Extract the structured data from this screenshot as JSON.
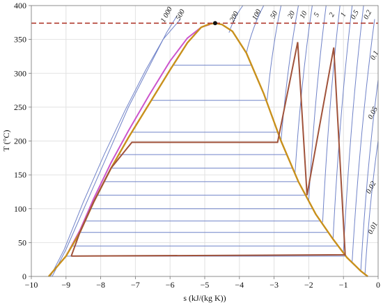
{
  "chart_data": {
    "type": "line",
    "xlabel": "s (kJ/(kg K))",
    "ylabel": "T (°C)",
    "xlim": [
      -10,
      0
    ],
    "ylim": [
      0,
      400
    ],
    "x_ticks": [
      "−10",
      "−9",
      "−8",
      "−7",
      "−6",
      "−5",
      "−4",
      "−3",
      "−2",
      "−1",
      "0"
    ],
    "y_ticks": [
      "0",
      "50",
      "100",
      "150",
      "200",
      "250",
      "300",
      "350",
      "400"
    ],
    "grid": true,
    "critical_temperature_line": {
      "y": 374,
      "color": "#b03a2e",
      "style": "dashed"
    },
    "critical_point": {
      "x": -4.7,
      "y": 374
    },
    "isobar_labels": [
      {
        "text": "1 000",
        "x": -6.05,
        "y": 385
      },
      {
        "text": "500",
        "x": -5.65,
        "y": 385
      },
      {
        "text": "200",
        "x": -4.1,
        "y": 382
      },
      {
        "text": "100",
        "x": -3.45,
        "y": 385
      },
      {
        "text": "50",
        "x": -2.95,
        "y": 385
      },
      {
        "text": "20",
        "x": -2.45,
        "y": 385
      },
      {
        "text": "10",
        "x": -2.1,
        "y": 385
      },
      {
        "text": "5",
        "x": -1.72,
        "y": 385
      },
      {
        "text": "2",
        "x": -1.28,
        "y": 385
      },
      {
        "text": "1",
        "x": -0.95,
        "y": 385
      },
      {
        "text": "0.5",
        "x": -0.62,
        "y": 385
      },
      {
        "text": "0.2",
        "x": -0.25,
        "y": 385
      },
      {
        "text": "0.1",
        "x": -0.05,
        "y": 325
      },
      {
        "text": "0.05",
        "x": -0.1,
        "y": 240
      },
      {
        "text": "0.02",
        "x": -0.15,
        "y": 130
      },
      {
        "text": "0.01",
        "x": -0.1,
        "y": 70
      }
    ],
    "saturation_dome": {
      "color": "#c8901c",
      "x": [
        -9.5,
        -9.0,
        -8.6,
        -8.2,
        -7.7,
        -7.2,
        -6.6,
        -6.0,
        -5.5,
        -5.1,
        -4.85,
        -4.7,
        -4.5,
        -4.2,
        -3.8,
        -3.3,
        -2.8,
        -2.3,
        -1.8,
        -1.3,
        -0.9,
        -0.5,
        -0.3
      ],
      "y": [
        0,
        30,
        65,
        110,
        160,
        205,
        255,
        305,
        345,
        368,
        373,
        374,
        372,
        362,
        330,
        270,
        200,
        140,
        92,
        55,
        28,
        8,
        0
      ]
    },
    "process_cycle": {
      "color": "#a0523a",
      "x": [
        -8.85,
        -8.6,
        -8.2,
        -7.7,
        -7.1,
        -2.9,
        -2.32,
        -2.05,
        -1.28,
        -0.95,
        -8.85
      ],
      "y": [
        30,
        65,
        110,
        160,
        198,
        198,
        346,
        120,
        338,
        32,
        30
      ]
    },
    "compressed_liquid_curve": {
      "color": "#cc55cc",
      "x": [
        -9.0,
        -8.6,
        -8.2,
        -7.7,
        -7.2,
        -6.6,
        -6.0,
        -5.5,
        -5.1,
        -4.85
      ],
      "y": [
        30,
        68,
        115,
        168,
        215,
        268,
        318,
        352,
        368,
        372
      ]
    },
    "isotherms_in_dome": [
      30,
      45,
      65,
      82,
      100,
      120,
      140,
      160,
      180,
      213,
      260,
      312
    ],
    "isobar_color": "#6f82c8",
    "saturation_color": "#c8901c"
  }
}
